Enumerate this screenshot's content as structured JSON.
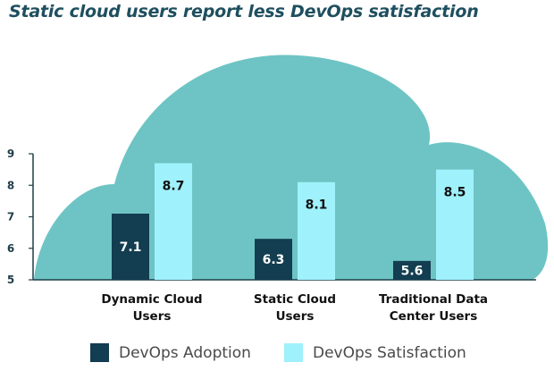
{
  "chart_data": {
    "type": "bar",
    "title": "Static cloud users report less DevOps satisfaction",
    "categories": [
      [
        "Dynamic Cloud",
        "Users"
      ],
      [
        "Static Cloud",
        "Users"
      ],
      [
        "Traditional Data",
        "Center Users"
      ]
    ],
    "series": [
      {
        "name": "DevOps Adoption",
        "values": [
          7.1,
          6.3,
          5.6
        ],
        "color": "#133d50",
        "label_color": "#ffffff"
      },
      {
        "name": "DevOps Satisfaction",
        "values": [
          8.7,
          8.1,
          8.5
        ],
        "color": "#9ff1fb",
        "label_color": "#111111"
      }
    ],
    "ylim": [
      5,
      9
    ],
    "yticks": [
      5,
      6,
      7,
      8,
      9
    ],
    "value_labels": [
      "7.1",
      "6.3",
      "5.6",
      "8.7",
      "8.1",
      "8.5"
    ],
    "legend_position": "bottom",
    "background_color": "#6ec4c4",
    "grid": false
  }
}
